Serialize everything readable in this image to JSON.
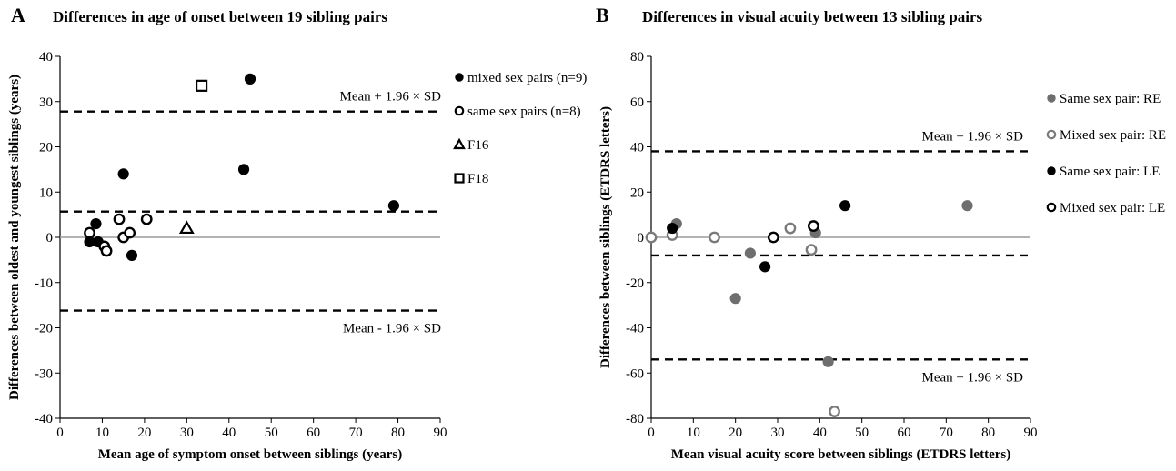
{
  "chart_data": [
    {
      "panel_letter": "A",
      "type": "scatter",
      "title": "Differences in age of onset between 19 sibling pairs",
      "xlabel": "Mean age of symptom onset between siblings (years)",
      "ylabel": "Differences between oldest and youngest siblings (years)",
      "xlim": [
        0,
        90
      ],
      "ylim": [
        -40,
        40
      ],
      "x_ticks": [
        0,
        10,
        20,
        30,
        40,
        50,
        60,
        70,
        80,
        90
      ],
      "y_ticks": [
        -40,
        -30,
        -20,
        -10,
        0,
        10,
        20,
        30,
        40
      ],
      "grid": false,
      "legend_position": "right",
      "series": [
        {
          "name": "mixed sex pairs (n=9)",
          "marker": "filled-circle",
          "color": "#000000",
          "points": [
            [
              7,
              -1
            ],
            [
              8.5,
              3
            ],
            [
              9,
              -1
            ],
            [
              15,
              14
            ],
            [
              17,
              -4
            ],
            [
              43.5,
              15
            ],
            [
              45,
              35
            ],
            [
              79,
              7
            ]
          ]
        },
        {
          "name": "same sex pairs (n=8)",
          "marker": "open-circle",
          "color": "#000000",
          "points": [
            [
              7,
              1
            ],
            [
              10.5,
              -2
            ],
            [
              11,
              -3
            ],
            [
              14,
              4
            ],
            [
              15,
              0
            ],
            [
              16.5,
              1
            ],
            [
              20.5,
              4
            ]
          ]
        },
        {
          "name": "F16",
          "marker": "open-triangle",
          "color": "#000000",
          "points": [
            [
              30,
              2
            ]
          ]
        },
        {
          "name": "F18",
          "marker": "open-square",
          "color": "#000000",
          "points": [
            [
              33.5,
              33.5
            ]
          ]
        }
      ],
      "reference_lines": [
        {
          "y": 27.8,
          "style": "dashed",
          "label": "Mean + 1.96 × SD"
        },
        {
          "y": 5.7,
          "style": "dashed",
          "label": ""
        },
        {
          "y": -16.2,
          "style": "dashed",
          "label": "Mean - 1.96 × SD"
        },
        {
          "y": 0,
          "style": "solid-grey",
          "label": ""
        }
      ]
    },
    {
      "panel_letter": "B",
      "type": "scatter",
      "title": "Differences in visual acuity between 13 sibling pairs",
      "xlabel": "Mean visual acuity score between siblings (ETDRS letters)",
      "ylabel": "Differences between siblings (ETDRS letters)",
      "xlim": [
        0,
        90
      ],
      "ylim": [
        -80,
        80
      ],
      "x_ticks": [
        0,
        10,
        20,
        30,
        40,
        50,
        60,
        70,
        80,
        90
      ],
      "y_ticks": [
        -80,
        -60,
        -40,
        -20,
        0,
        20,
        40,
        60,
        80
      ],
      "grid": false,
      "legend_position": "right",
      "series": [
        {
          "name": "Same sex pair: RE",
          "marker": "filled-circle",
          "color": "#6e6e6e",
          "points": [
            [
              6,
              6
            ],
            [
              20,
              -27
            ],
            [
              23.5,
              -7
            ],
            [
              39,
              2
            ],
            [
              42,
              -55
            ],
            [
              75,
              14
            ]
          ]
        },
        {
          "name": "Mixed sex pair: RE",
          "marker": "open-circle",
          "color": "#7a7a7a",
          "points": [
            [
              0,
              0
            ],
            [
              5,
              1
            ],
            [
              15,
              0
            ],
            [
              33,
              4
            ],
            [
              38,
              -5.5
            ],
            [
              43.5,
              -77
            ]
          ]
        },
        {
          "name": "Same sex pair: LE",
          "marker": "filled-circle",
          "color": "#000000",
          "points": [
            [
              5,
              4
            ],
            [
              27,
              -13
            ],
            [
              46,
              14
            ]
          ]
        },
        {
          "name": "Mixed sex pair: LE",
          "marker": "open-circle",
          "color": "#000000",
          "points": [
            [
              29,
              0
            ],
            [
              38.5,
              5
            ]
          ]
        }
      ],
      "reference_lines": [
        {
          "y": 38,
          "style": "dashed",
          "label": "Mean + 1.96 × SD"
        },
        {
          "y": -8,
          "style": "dashed",
          "label": ""
        },
        {
          "y": -54,
          "style": "dashed",
          "label": "Mean + 1.96 × SD"
        },
        {
          "y": 0,
          "style": "solid-grey",
          "label": ""
        }
      ]
    }
  ]
}
